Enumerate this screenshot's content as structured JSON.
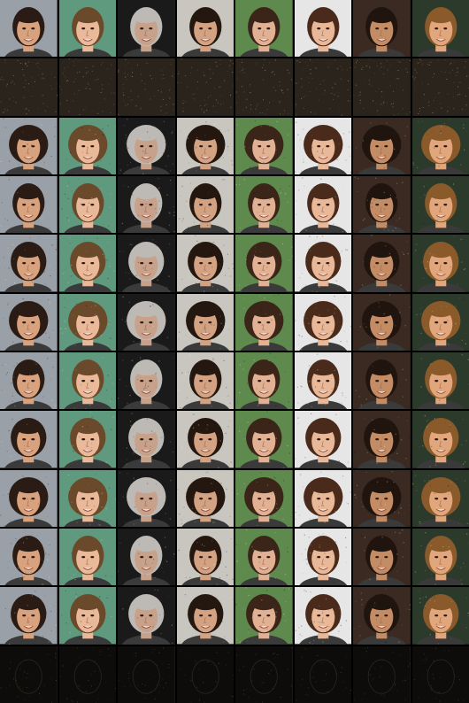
{
  "grid": {
    "rows": 12,
    "cols": 8,
    "row_kinds": [
      "original",
      "noise",
      "face",
      "face",
      "face",
      "face",
      "face",
      "face",
      "face",
      "face",
      "face",
      "residual"
    ],
    "column_backgrounds": [
      "#9aa0a8",
      "#5f9a7e",
      "#1a1a1a",
      "#c9c6c0",
      "#5f8a4e",
      "#e6e6e6",
      "#3a2a22",
      "#2b3a2a"
    ],
    "column_hair": [
      "#2a1c14",
      "#6a4a2a",
      "#bdbab6",
      "#24170f",
      "#3a2518",
      "#4a2a1a",
      "#20140e",
      "#8a5a2a"
    ],
    "column_skin": [
      "#d9a27e",
      "#e9b99a",
      "#c8a18a",
      "#d3a283",
      "#e2b092",
      "#e8b898",
      "#c48c64",
      "#e1a67c"
    ],
    "noise_color": "#2a241c",
    "residual_color": "#0d0c0b"
  }
}
